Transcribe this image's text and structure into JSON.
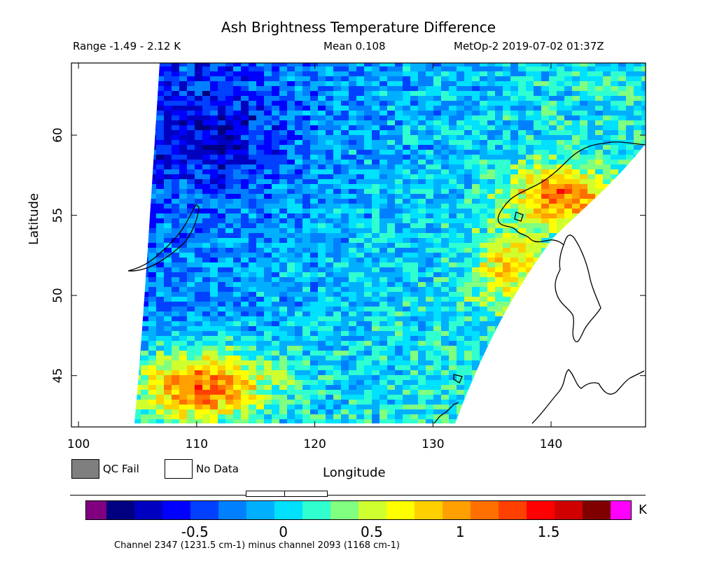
{
  "header": {
    "title": "Ash Brightness Temperature Difference",
    "range": "Range -1.49 - 2.12 K",
    "mean": "Mean 0.108",
    "satellite_time": "MetOp-2 2019-07-02 01:37Z"
  },
  "axes": {
    "xlabel": "Longitude",
    "ylabel": "Latitude",
    "x_ticks": [
      "100",
      "110",
      "120",
      "130",
      "140"
    ],
    "y_ticks": [
      "45",
      "50",
      "55",
      "60"
    ],
    "x_range": [
      99.4,
      148
    ],
    "y_range": [
      41.8,
      64.5
    ]
  },
  "legend": {
    "qc_fail": "QC Fail",
    "no_data": "No Data",
    "qc_fail_color": "#7f7f7f",
    "no_data_color": "#ffffff"
  },
  "colorbar": {
    "unit": "K",
    "ticks": [
      "-0.5",
      "0",
      "0.5",
      "1",
      "1.5"
    ],
    "tick_values": [
      -0.5,
      0,
      0.5,
      1,
      1.5
    ],
    "value_range": [
      -1.0,
      1.85
    ],
    "under_color": "#800080",
    "over_color": "#ff00ff",
    "colors": [
      "#000080",
      "#0000c0",
      "#0000ff",
      "#0040ff",
      "#0080ff",
      "#00b0ff",
      "#00e0ff",
      "#30ffd0",
      "#80ff80",
      "#d0ff30",
      "#ffff00",
      "#ffd000",
      "#ffa000",
      "#ff7000",
      "#ff4000",
      "#ff0000",
      "#d00000",
      "#800000"
    ]
  },
  "footer": {
    "channel_note": "Channel 2347 (1231.5 cm-1) minus channel 2093 (1168 cm-1)"
  }
}
